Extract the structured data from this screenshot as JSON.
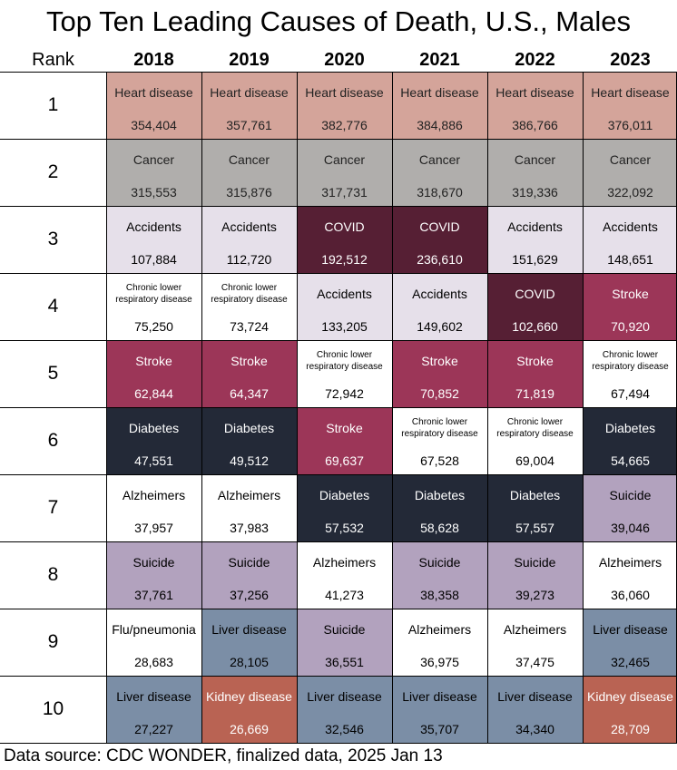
{
  "chart_data": {
    "type": "table",
    "title": "Top Ten Leading Causes of Death, U.S., Males",
    "rank_header": "Rank",
    "years": [
      "2018",
      "2019",
      "2020",
      "2021",
      "2022",
      "2023"
    ],
    "ranks": [
      "1",
      "2",
      "3",
      "4",
      "5",
      "6",
      "7",
      "8",
      "9",
      "10"
    ],
    "cells": [
      [
        {
          "cause": "Heart disease",
          "deaths": "354,404"
        },
        {
          "cause": "Heart disease",
          "deaths": "357,761"
        },
        {
          "cause": "Heart disease",
          "deaths": "382,776"
        },
        {
          "cause": "Heart disease",
          "deaths": "384,886"
        },
        {
          "cause": "Heart disease",
          "deaths": "386,766"
        },
        {
          "cause": "Heart disease",
          "deaths": "376,011"
        }
      ],
      [
        {
          "cause": "Cancer",
          "deaths": "315,553"
        },
        {
          "cause": "Cancer",
          "deaths": "315,876"
        },
        {
          "cause": "Cancer",
          "deaths": "317,731"
        },
        {
          "cause": "Cancer",
          "deaths": "318,670"
        },
        {
          "cause": "Cancer",
          "deaths": "319,336"
        },
        {
          "cause": "Cancer",
          "deaths": "322,092"
        }
      ],
      [
        {
          "cause": "Accidents",
          "deaths": "107,884"
        },
        {
          "cause": "Accidents",
          "deaths": "112,720"
        },
        {
          "cause": "COVID",
          "deaths": "192,512"
        },
        {
          "cause": "COVID",
          "deaths": "236,610"
        },
        {
          "cause": "Accidents",
          "deaths": "151,629"
        },
        {
          "cause": "Accidents",
          "deaths": "148,651"
        }
      ],
      [
        {
          "cause": "Chronic lower respiratory disease",
          "deaths": "75,250"
        },
        {
          "cause": "Chronic lower respiratory disease",
          "deaths": "73,724"
        },
        {
          "cause": "Accidents",
          "deaths": "133,205"
        },
        {
          "cause": "Accidents",
          "deaths": "149,602"
        },
        {
          "cause": "COVID",
          "deaths": "102,660"
        },
        {
          "cause": "Stroke",
          "deaths": "70,920"
        }
      ],
      [
        {
          "cause": "Stroke",
          "deaths": "62,844"
        },
        {
          "cause": "Stroke",
          "deaths": "64,347"
        },
        {
          "cause": "Chronic lower respiratory disease",
          "deaths": "72,942"
        },
        {
          "cause": "Stroke",
          "deaths": "70,852"
        },
        {
          "cause": "Stroke",
          "deaths": "71,819"
        },
        {
          "cause": "Chronic lower respiratory disease",
          "deaths": "67,494"
        }
      ],
      [
        {
          "cause": "Diabetes",
          "deaths": "47,551"
        },
        {
          "cause": "Diabetes",
          "deaths": "49,512"
        },
        {
          "cause": "Stroke",
          "deaths": "69,637"
        },
        {
          "cause": "Chronic lower respiratory disease",
          "deaths": "67,528"
        },
        {
          "cause": "Chronic lower respiratory disease",
          "deaths": "69,004"
        },
        {
          "cause": "Diabetes",
          "deaths": "54,665"
        }
      ],
      [
        {
          "cause": "Alzheimers",
          "deaths": "37,957"
        },
        {
          "cause": "Alzheimers",
          "deaths": "37,983"
        },
        {
          "cause": "Diabetes",
          "deaths": "57,532"
        },
        {
          "cause": "Diabetes",
          "deaths": "58,628"
        },
        {
          "cause": "Diabetes",
          "deaths": "57,557"
        },
        {
          "cause": "Suicide",
          "deaths": "39,046"
        }
      ],
      [
        {
          "cause": "Suicide",
          "deaths": "37,761"
        },
        {
          "cause": "Suicide",
          "deaths": "37,256"
        },
        {
          "cause": "Alzheimers",
          "deaths": "41,273"
        },
        {
          "cause": "Suicide",
          "deaths": "38,358"
        },
        {
          "cause": "Suicide",
          "deaths": "39,273"
        },
        {
          "cause": "Alzheimers",
          "deaths": "36,060"
        }
      ],
      [
        {
          "cause": "Flu/pneumonia",
          "deaths": "28,683"
        },
        {
          "cause": "Liver disease",
          "deaths": "28,105"
        },
        {
          "cause": "Suicide",
          "deaths": "36,551"
        },
        {
          "cause": "Alzheimers",
          "deaths": "36,975"
        },
        {
          "cause": "Alzheimers",
          "deaths": "37,475"
        },
        {
          "cause": "Liver disease",
          "deaths": "32,465"
        }
      ],
      [
        {
          "cause": "Liver disease",
          "deaths": "27,227"
        },
        {
          "cause": "Kidney disease",
          "deaths": "26,669"
        },
        {
          "cause": "Liver disease",
          "deaths": "32,546"
        },
        {
          "cause": "Liver disease",
          "deaths": "35,707"
        },
        {
          "cause": "Liver disease",
          "deaths": "34,340"
        },
        {
          "cause": "Kidney disease",
          "deaths": "28,709"
        }
      ]
    ],
    "cause_colors": {
      "Heart disease": {
        "bg": "#d4a49a",
        "fg": "#222222"
      },
      "Cancer": {
        "bg": "#b0aeac",
        "fg": "#222222"
      },
      "Accidents": {
        "bg": "#e6e0ea",
        "fg": "#000000"
      },
      "COVID": {
        "bg": "#561f34",
        "fg": "#ffffff"
      },
      "Chronic lower respiratory disease": {
        "bg": "#ffffff",
        "fg": "#000000"
      },
      "Stroke": {
        "bg": "#9c3658",
        "fg": "#ffffff"
      },
      "Diabetes": {
        "bg": "#232937",
        "fg": "#ffffff"
      },
      "Alzheimers": {
        "bg": "#ffffff",
        "fg": "#000000"
      },
      "Suicide": {
        "bg": "#b2a2be",
        "fg": "#000000"
      },
      "Flu/pneumonia": {
        "bg": "#ffffff",
        "fg": "#000000"
      },
      "Liver disease": {
        "bg": "#7b8ea6",
        "fg": "#000000"
      },
      "Kidney disease": {
        "bg": "#b96353",
        "fg": "#ffffff"
      }
    }
  },
  "source": "Data source: CDC WONDER, finalized data, 2025 Jan 13"
}
